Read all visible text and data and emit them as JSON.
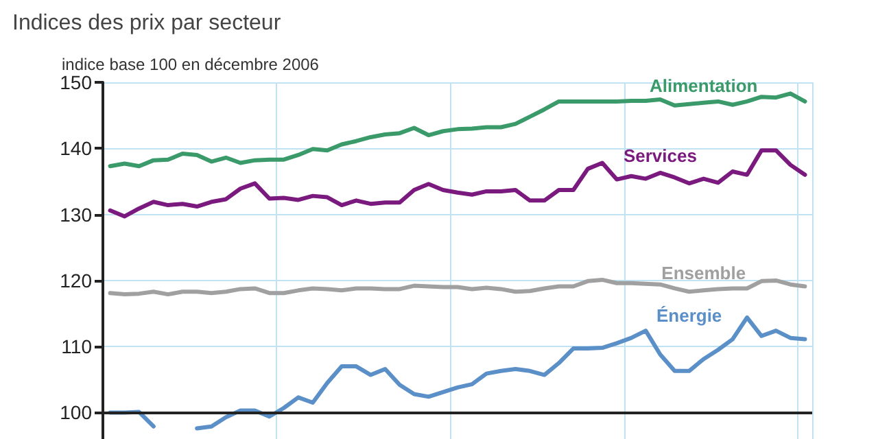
{
  "chart_data": {
    "type": "line",
    "title": "Indices des prix par secteur",
    "ylabel": "indice base 100 en décembre 2006",
    "categories": [
      null,
      null,
      null,
      null,
      null,
      null,
      null,
      null,
      null,
      null,
      null,
      null,
      null,
      null,
      null,
      null,
      null,
      null,
      null,
      null,
      null,
      null,
      null,
      null,
      null,
      null,
      null,
      null,
      null,
      null,
      null,
      null,
      null,
      null,
      null,
      null,
      null,
      null,
      null,
      null,
      null,
      null,
      null,
      null,
      null,
      null,
      null,
      null,
      null
    ],
    "series": [
      {
        "name": "Alimentation",
        "color": "#3a9a6a",
        "values": [
          137.3,
          137.7,
          137.3,
          138.2,
          138.3,
          139.2,
          139.0,
          138.0,
          138.6,
          137.8,
          138.2,
          138.3,
          138.3,
          139.0,
          139.9,
          139.7,
          140.6,
          141.1,
          141.7,
          142.1,
          142.3,
          143.1,
          142.0,
          142.6,
          142.9,
          143.0,
          143.2,
          143.2,
          143.7,
          144.8,
          145.9,
          147.1,
          147.1,
          147.1,
          147.1,
          147.1,
          147.2,
          147.2,
          147.4,
          146.5,
          146.7,
          146.9,
          147.1,
          146.6,
          147.1,
          147.8,
          147.7,
          148.3,
          147.1
        ]
      },
      {
        "name": "Services",
        "color": "#7b1a7e",
        "values": [
          130.6,
          129.7,
          130.9,
          131.9,
          131.4,
          131.6,
          131.2,
          131.9,
          132.3,
          133.9,
          134.7,
          132.4,
          132.5,
          132.2,
          132.8,
          132.6,
          131.4,
          132.1,
          131.6,
          131.8,
          131.8,
          133.7,
          134.6,
          133.7,
          133.3,
          133.0,
          133.5,
          133.5,
          133.7,
          132.1,
          132.1,
          133.7,
          133.7,
          136.9,
          137.8,
          135.3,
          135.8,
          135.4,
          136.3,
          135.6,
          134.7,
          135.4,
          134.8,
          136.5,
          136.0,
          139.7,
          139.7,
          137.5,
          136.0
        ]
      },
      {
        "name": "Ensemble",
        "color": "#a0a0a0",
        "values": [
          118.1,
          117.9,
          118.0,
          118.3,
          117.9,
          118.3,
          118.3,
          118.1,
          118.3,
          118.7,
          118.8,
          118.1,
          118.1,
          118.5,
          118.8,
          118.7,
          118.5,
          118.8,
          118.8,
          118.7,
          118.7,
          119.2,
          119.1,
          119.0,
          119.0,
          118.7,
          118.9,
          118.7,
          118.3,
          118.4,
          118.8,
          119.1,
          119.1,
          119.9,
          120.1,
          119.6,
          119.6,
          119.5,
          119.4,
          118.8,
          118.3,
          118.5,
          118.7,
          118.8,
          118.8,
          119.9,
          120.0,
          119.4,
          119.1
        ]
      },
      {
        "name": "Énergie",
        "color": "#5b8fc7",
        "values": [
          100.0,
          100.0,
          100.1,
          97.9,
          null,
          null,
          97.6,
          97.9,
          99.3,
          100.3,
          100.3,
          99.4,
          100.7,
          102.3,
          101.5,
          104.5,
          107.0,
          107.0,
          105.7,
          106.6,
          104.2,
          102.8,
          102.4,
          103.1,
          103.8,
          104.3,
          105.9,
          106.3,
          106.6,
          106.3,
          105.7,
          107.5,
          109.7,
          109.7,
          109.8,
          110.5,
          111.3,
          112.4,
          108.8,
          106.3,
          106.3,
          108.1,
          109.5,
          111.1,
          114.4,
          111.6,
          112.4,
          111.3,
          111.1
        ]
      }
    ],
    "ref_lines": [
      {
        "axis": "y",
        "value": 100,
        "color": "#222222"
      }
    ],
    "ylim": [
      96,
      150
    ],
    "yticks": [
      100,
      110,
      120,
      130,
      140,
      150
    ],
    "grid": true,
    "tick_labels": "y"
  }
}
